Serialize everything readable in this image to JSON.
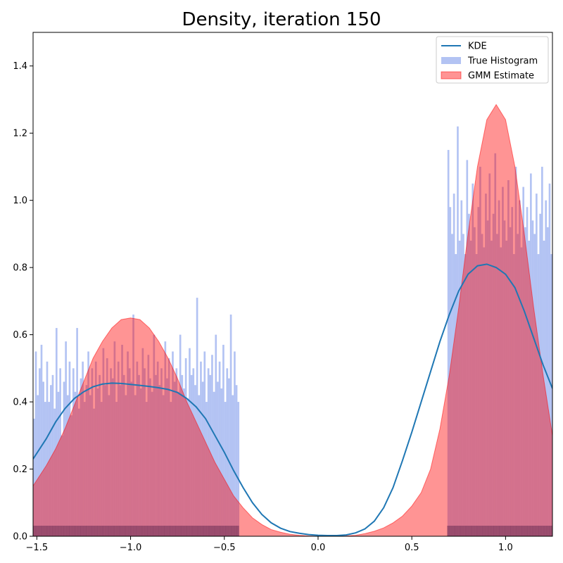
{
  "chart_data": {
    "type": "area",
    "title": "Density, iteration 150",
    "xlabel": "",
    "ylabel": "",
    "xlim": [
      -1.52,
      1.25
    ],
    "ylim": [
      0,
      1.5
    ],
    "x_ticks": [
      -1.5,
      -1.0,
      -0.5,
      0.0,
      0.5,
      1.0
    ],
    "x_tick_labels": [
      "−1.5",
      "−1.0",
      "−0.5",
      "0.0",
      "0.5",
      "1.0"
    ],
    "y_ticks": [
      0.0,
      0.2,
      0.4,
      0.6,
      0.8,
      1.0,
      1.2,
      1.4
    ],
    "y_tick_labels": [
      "0.0",
      "0.2",
      "0.4",
      "0.6",
      "0.8",
      "1.0",
      "1.2",
      "1.4"
    ],
    "grid": false,
    "legend_position": "top-right",
    "legend": [
      {
        "label": "KDE",
        "kind": "line",
        "color": "#1f77b4"
      },
      {
        "label": "True Histogram",
        "kind": "patch",
        "color": "#4169e1"
      },
      {
        "label": "GMM Estimate",
        "kind": "patch",
        "color": "#ff0000"
      }
    ],
    "series": [
      {
        "name": "KDE",
        "kind": "line",
        "color": "#1f77b4",
        "x": [
          -1.52,
          -1.45,
          -1.4,
          -1.35,
          -1.3,
          -1.25,
          -1.2,
          -1.15,
          -1.1,
          -1.05,
          -1.0,
          -0.95,
          -0.9,
          -0.85,
          -0.8,
          -0.75,
          -0.7,
          -0.65,
          -0.6,
          -0.55,
          -0.5,
          -0.45,
          -0.4,
          -0.35,
          -0.3,
          -0.25,
          -0.2,
          -0.15,
          -0.1,
          -0.05,
          0.0,
          0.05,
          0.1,
          0.15,
          0.2,
          0.25,
          0.3,
          0.35,
          0.4,
          0.45,
          0.5,
          0.55,
          0.6,
          0.65,
          0.7,
          0.75,
          0.8,
          0.85,
          0.9,
          0.95,
          1.0,
          1.05,
          1.1,
          1.15,
          1.2,
          1.25
        ],
        "y": [
          0.23,
          0.29,
          0.34,
          0.38,
          0.41,
          0.43,
          0.445,
          0.453,
          0.456,
          0.455,
          0.452,
          0.449,
          0.446,
          0.442,
          0.437,
          0.428,
          0.41,
          0.385,
          0.35,
          0.3,
          0.25,
          0.195,
          0.145,
          0.1,
          0.065,
          0.04,
          0.024,
          0.014,
          0.009,
          0.005,
          0.003,
          0.002,
          0.002,
          0.004,
          0.01,
          0.022,
          0.045,
          0.085,
          0.145,
          0.225,
          0.31,
          0.4,
          0.49,
          0.58,
          0.66,
          0.73,
          0.78,
          0.805,
          0.81,
          0.8,
          0.78,
          0.74,
          0.67,
          0.59,
          0.51,
          0.44
        ]
      },
      {
        "name": "GMM Estimate",
        "kind": "area",
        "color": "#ff0000",
        "x": [
          -1.52,
          -1.45,
          -1.4,
          -1.35,
          -1.3,
          -1.25,
          -1.2,
          -1.15,
          -1.1,
          -1.05,
          -1.0,
          -0.95,
          -0.9,
          -0.85,
          -0.8,
          -0.75,
          -0.7,
          -0.65,
          -0.6,
          -0.55,
          -0.5,
          -0.45,
          -0.4,
          -0.35,
          -0.3,
          -0.25,
          -0.2,
          -0.15,
          -0.1,
          -0.05,
          0.0,
          0.05,
          0.1,
          0.15,
          0.2,
          0.25,
          0.3,
          0.35,
          0.4,
          0.45,
          0.5,
          0.55,
          0.6,
          0.65,
          0.7,
          0.75,
          0.8,
          0.85,
          0.9,
          0.95,
          1.0,
          1.05,
          1.1,
          1.15,
          1.2,
          1.25
        ],
        "y": [
          0.15,
          0.21,
          0.26,
          0.32,
          0.39,
          0.46,
          0.53,
          0.58,
          0.62,
          0.645,
          0.65,
          0.645,
          0.62,
          0.58,
          0.53,
          0.47,
          0.4,
          0.34,
          0.28,
          0.22,
          0.17,
          0.12,
          0.085,
          0.055,
          0.035,
          0.02,
          0.012,
          0.006,
          0.003,
          0.001,
          0.0,
          0.0,
          0.0,
          0.001,
          0.003,
          0.008,
          0.015,
          0.025,
          0.04,
          0.06,
          0.09,
          0.13,
          0.2,
          0.32,
          0.48,
          0.68,
          0.9,
          1.1,
          1.24,
          1.285,
          1.24,
          1.1,
          0.9,
          0.68,
          0.48,
          0.3
        ]
      },
      {
        "name": "True Histogram",
        "kind": "histogram",
        "color": "#4169e1",
        "bin_width": 0.01,
        "segments": [
          {
            "x_start": -1.52,
            "x_end": -0.42,
            "values": [
              0.35,
              0.55,
              0.42,
              0.5,
              0.57,
              0.46,
              0.4,
              0.52,
              0.4,
              0.45,
              0.48,
              0.38,
              0.62,
              0.43,
              0.5,
              0.3,
              0.46,
              0.58,
              0.42,
              0.52,
              0.36,
              0.5,
              0.43,
              0.62,
              0.38,
              0.47,
              0.52,
              0.4,
              0.45,
              0.55,
              0.42,
              0.5,
              0.38,
              0.52,
              0.44,
              0.48,
              0.4,
              0.56,
              0.45,
              0.53,
              0.42,
              0.5,
              0.47,
              0.58,
              0.4,
              0.52,
              0.45,
              0.57,
              0.48,
              0.42,
              0.55,
              0.5,
              0.46,
              0.66,
              0.42,
              0.52,
              0.48,
              0.44,
              0.56,
              0.5,
              0.4,
              0.54,
              0.47,
              0.43,
              0.6,
              0.48,
              0.52,
              0.45,
              0.5,
              0.42,
              0.58,
              0.47,
              0.53,
              0.4,
              0.55,
              0.46,
              0.5,
              0.43,
              0.6,
              0.48,
              0.44,
              0.53,
              0.41,
              0.56,
              0.48,
              0.5,
              0.45,
              0.71,
              0.42,
              0.52,
              0.46,
              0.55,
              0.4,
              0.5,
              0.48,
              0.54,
              0.43,
              0.6,
              0.46,
              0.52,
              0.44,
              0.57,
              0.4,
              0.5,
              0.47,
              0.66,
              0.42,
              0.55,
              0.45,
              0.4
            ]
          },
          {
            "x_start": 0.69,
            "x_end": 1.25,
            "values": [
              1.15,
              0.98,
              0.9,
              1.02,
              0.84,
              1.22,
              0.88,
              1.0,
              0.9,
              0.84,
              1.12,
              0.96,
              0.88,
              1.05,
              0.92,
              0.84,
              0.98,
              1.1,
              0.9,
              0.86,
              1.02,
              0.94,
              1.08,
              0.88,
              0.96,
              1.14,
              0.9,
              1.0,
              0.86,
              1.04,
              0.94,
              0.88,
              1.06,
              0.92,
              0.98,
              0.84,
              1.1,
              0.9,
              1.0,
              0.86,
              1.04,
              0.92,
              0.98,
              0.88,
              1.08,
              0.94,
              0.9,
              1.02,
              0.84,
              0.96,
              1.1,
              0.88,
              1.0,
              0.92,
              1.05,
              0.84
            ]
          }
        ]
      }
    ]
  }
}
